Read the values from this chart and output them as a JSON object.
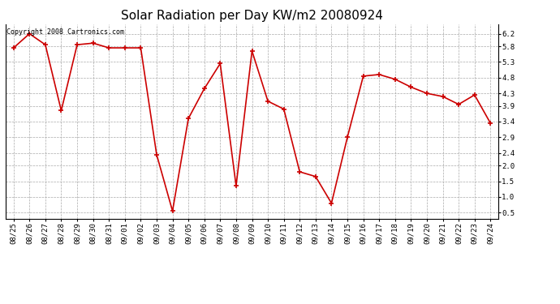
{
  "title": "Solar Radiation per Day KW/m2 20080924",
  "copyright_text": "Copyright 2008 Cartronics.com",
  "dates": [
    "08/25",
    "08/26",
    "08/27",
    "08/28",
    "08/29",
    "08/30",
    "08/31",
    "09/01",
    "09/02",
    "09/03",
    "09/04",
    "09/05",
    "09/06",
    "09/07",
    "09/08",
    "09/09",
    "09/10",
    "09/11",
    "09/12",
    "09/13",
    "09/14",
    "09/15",
    "09/16",
    "09/17",
    "09/18",
    "09/19",
    "09/20",
    "09/21",
    "09/22",
    "09/23",
    "09/24"
  ],
  "values": [
    5.75,
    6.2,
    5.85,
    3.75,
    5.85,
    5.9,
    5.75,
    5.75,
    5.75,
    2.35,
    0.55,
    3.5,
    4.45,
    5.25,
    1.35,
    5.65,
    4.05,
    3.8,
    1.8,
    1.65,
    0.8,
    2.9,
    4.85,
    4.9,
    4.75,
    4.5,
    4.3,
    4.2,
    3.95,
    4.25,
    3.35
  ],
  "line_color": "#cc0000",
  "marker": "+",
  "marker_size": 4,
  "line_width": 1.2,
  "ylim": [
    0.3,
    6.5
  ],
  "yticks": [
    0.5,
    1.0,
    1.5,
    2.0,
    2.4,
    2.9,
    3.4,
    3.9,
    4.3,
    4.8,
    5.3,
    5.8,
    6.2
  ],
  "bg_color": "#ffffff",
  "plot_bg_color": "#ffffff",
  "grid_color": "#aaaaaa",
  "title_fontsize": 11,
  "tick_fontsize": 6.5,
  "copyright_fontsize": 6
}
